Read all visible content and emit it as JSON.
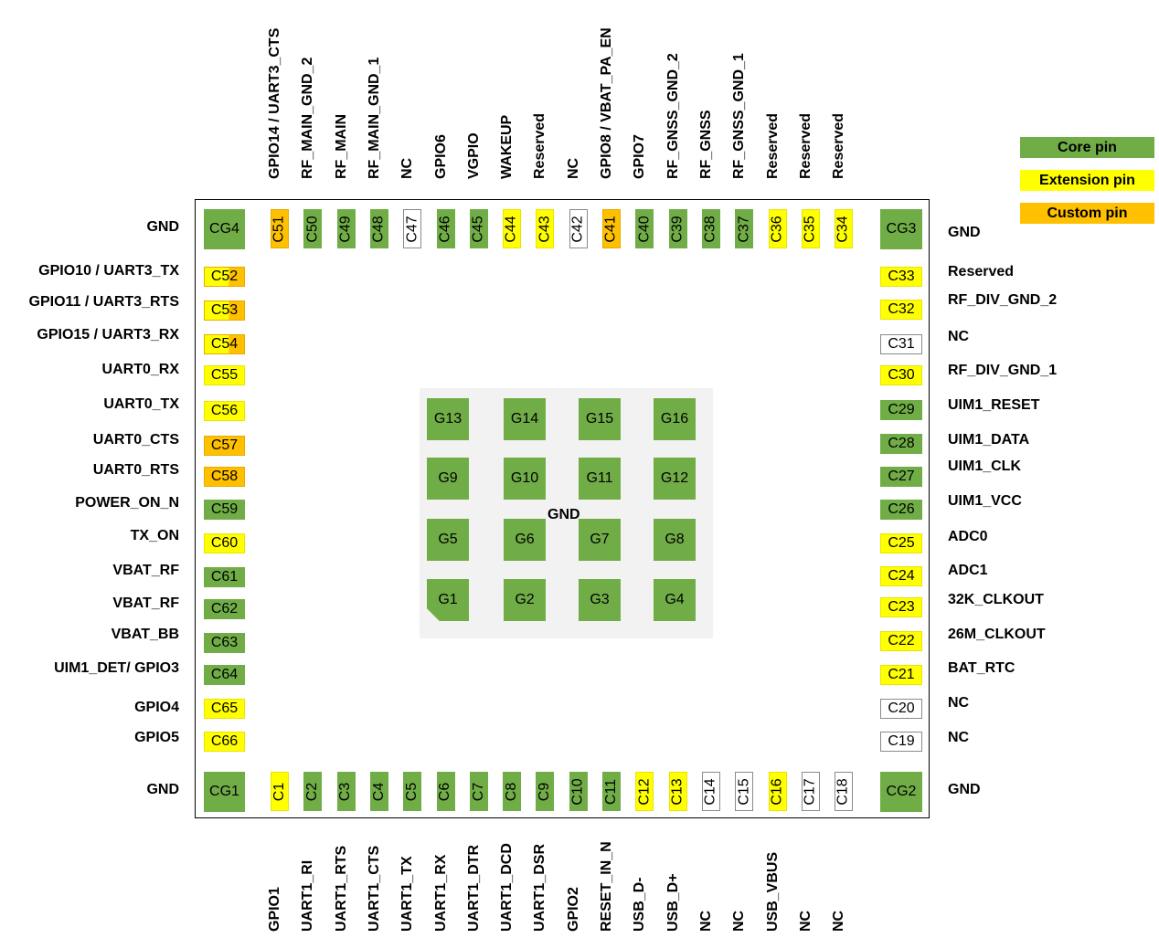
{
  "legend": {
    "core": "Core pin",
    "extension": "Extension pin",
    "custom": "Custom pin",
    "colors": {
      "core": "#70ad47",
      "extension": "#ffff00",
      "custom": "#ffc000",
      "nc": "#ffffff"
    }
  },
  "center_label": "GND",
  "corners": {
    "cg4": {
      "pad": "CG4",
      "label": "GND"
    },
    "cg3": {
      "pad": "CG3",
      "label": "GND"
    },
    "cg1": {
      "pad": "CG1",
      "label": "GND"
    },
    "cg2": {
      "pad": "CG2",
      "label": "GND"
    }
  },
  "top_pins": [
    {
      "pad": "C51",
      "label": "GPIO14 / UART3_CTS",
      "type": "custom"
    },
    {
      "pad": "C50",
      "label": "RF_MAIN_GND_2",
      "type": "core"
    },
    {
      "pad": "C49",
      "label": "RF_MAIN",
      "type": "core"
    },
    {
      "pad": "C48",
      "label": "RF_MAIN_GND_1",
      "type": "core"
    },
    {
      "pad": "C47",
      "label": "NC",
      "type": "nc"
    },
    {
      "pad": "C46",
      "label": "GPIO6",
      "type": "core"
    },
    {
      "pad": "C45",
      "label": "VGPIO",
      "type": "core"
    },
    {
      "pad": "C44",
      "label": "WAKEUP",
      "type": "ext"
    },
    {
      "pad": "C43",
      "label": "Reserved",
      "type": "ext"
    },
    {
      "pad": "C42",
      "label": "NC",
      "type": "nc"
    },
    {
      "pad": "C41",
      "label": "GPIO8 / VBAT_PA_EN",
      "type": "custom"
    },
    {
      "pad": "C40",
      "label": "GPIO7",
      "type": "core"
    },
    {
      "pad": "C39",
      "label": "RF_GNSS_GND_2",
      "type": "core"
    },
    {
      "pad": "C38",
      "label": "RF_GNSS",
      "type": "core"
    },
    {
      "pad": "C37",
      "label": "RF_GNSS_GND_1",
      "type": "core"
    },
    {
      "pad": "C36",
      "label": "Reserved",
      "type": "ext"
    },
    {
      "pad": "C35",
      "label": "Reserved",
      "type": "ext"
    },
    {
      "pad": "C34",
      "label": "Reserved",
      "type": "ext"
    }
  ],
  "bottom_pins": [
    {
      "pad": "C1",
      "label": "GPIO1",
      "type": "ext"
    },
    {
      "pad": "C2",
      "label": "UART1_RI",
      "type": "core"
    },
    {
      "pad": "C3",
      "label": "UART1_RTS",
      "type": "core"
    },
    {
      "pad": "C4",
      "label": "UART1_CTS",
      "type": "core"
    },
    {
      "pad": "C5",
      "label": "UART1_TX",
      "type": "core"
    },
    {
      "pad": "C6",
      "label": "UART1_RX",
      "type": "core"
    },
    {
      "pad": "C7",
      "label": "UART1_DTR",
      "type": "core"
    },
    {
      "pad": "C8",
      "label": "UART1_DCD",
      "type": "core"
    },
    {
      "pad": "C9",
      "label": "UART1_DSR",
      "type": "core"
    },
    {
      "pad": "C10",
      "label": "GPIO2",
      "type": "core"
    },
    {
      "pad": "C11",
      "label": "RESET_IN_N",
      "type": "core"
    },
    {
      "pad": "C12",
      "label": "USB_D-",
      "type": "ext"
    },
    {
      "pad": "C13",
      "label": "USB_D+",
      "type": "ext"
    },
    {
      "pad": "C14",
      "label": "NC",
      "type": "nc"
    },
    {
      "pad": "C15",
      "label": "NC",
      "type": "nc"
    },
    {
      "pad": "C16",
      "label": "USB_VBUS",
      "type": "ext"
    },
    {
      "pad": "C17",
      "label": "NC",
      "type": "nc"
    },
    {
      "pad": "C18",
      "label": "NC",
      "type": "nc"
    }
  ],
  "left_pins": [
    {
      "pad": "C52",
      "label": "GPIO10 / UART3_TX",
      "type": "half"
    },
    {
      "pad": "C53",
      "label": "GPIO11 / UART3_RTS",
      "type": "half"
    },
    {
      "pad": "C54",
      "label": "GPIO15 / UART3_RX",
      "type": "half"
    },
    {
      "pad": "C55",
      "label": "UART0_RX",
      "type": "ext"
    },
    {
      "pad": "C56",
      "label": "UART0_TX",
      "type": "ext"
    },
    {
      "pad": "C57",
      "label": "UART0_CTS",
      "type": "custom"
    },
    {
      "pad": "C58",
      "label": "UART0_RTS",
      "type": "custom"
    },
    {
      "pad": "C59",
      "label": "POWER_ON_N",
      "type": "core"
    },
    {
      "pad": "C60",
      "label": "TX_ON",
      "type": "ext"
    },
    {
      "pad": "C61",
      "label": "VBAT_RF",
      "type": "core"
    },
    {
      "pad": "C62",
      "label": "VBAT_RF",
      "type": "core"
    },
    {
      "pad": "C63",
      "label": "VBAT_BB",
      "type": "core"
    },
    {
      "pad": "C64",
      "label": "UIM1_DET/ GPIO3",
      "type": "core"
    },
    {
      "pad": "C65",
      "label": "GPIO4",
      "type": "ext"
    },
    {
      "pad": "C66",
      "label": "GPIO5",
      "type": "ext"
    }
  ],
  "right_pins": [
    {
      "pad": "C33",
      "label": "Reserved",
      "type": "ext"
    },
    {
      "pad": "C32",
      "label": "RF_DIV_GND_2",
      "type": "ext"
    },
    {
      "pad": "C31",
      "label": "NC",
      "type": "nc"
    },
    {
      "pad": "C30",
      "label": "RF_DIV_GND_1",
      "type": "ext"
    },
    {
      "pad": "C29",
      "label": "UIM1_RESET",
      "type": "core"
    },
    {
      "pad": "C28",
      "label": "UIM1_DATA",
      "type": "core"
    },
    {
      "pad": "C27",
      "label": "UIM1_CLK",
      "type": "core"
    },
    {
      "pad": "C26",
      "label": "UIM1_VCC",
      "type": "core"
    },
    {
      "pad": "C25",
      "label": "ADC0",
      "type": "ext"
    },
    {
      "pad": "C24",
      "label": "ADC1",
      "type": "ext"
    },
    {
      "pad": "C23",
      "label": "32K_CLKOUT",
      "type": "ext"
    },
    {
      "pad": "C22",
      "label": "26M_CLKOUT",
      "type": "ext"
    },
    {
      "pad": "C21",
      "label": "BAT_RTC",
      "type": "ext"
    },
    {
      "pad": "C20",
      "label": "NC",
      "type": "nc"
    },
    {
      "pad": "C19",
      "label": "NC",
      "type": "nc"
    }
  ],
  "ground_pads": [
    [
      "G13",
      "G14",
      "G15",
      "G16"
    ],
    [
      "G9",
      "G10",
      "G11",
      "G12"
    ],
    [
      "G5",
      "G6",
      "G7",
      "G8"
    ],
    [
      "G1",
      "G2",
      "G3",
      "G4"
    ]
  ]
}
